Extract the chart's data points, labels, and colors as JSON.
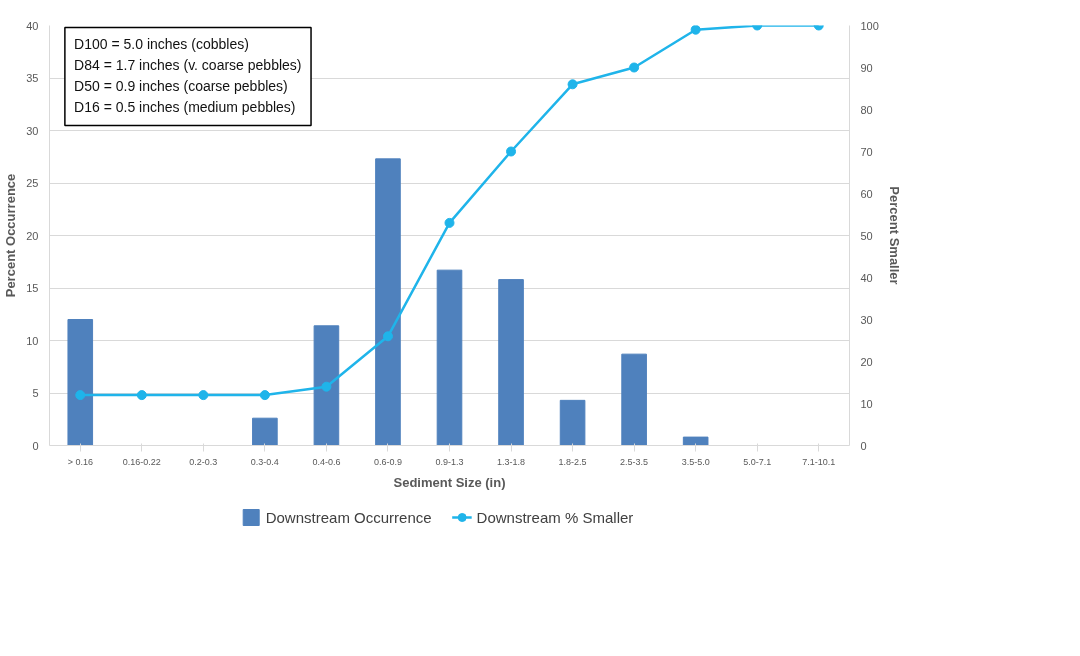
{
  "chart_data": {
    "type": "bar",
    "xlabel": "Sediment Size (in)",
    "ylabel": "Percent Occurrence",
    "y2label": "Percent Smaller",
    "categories": [
      "> 0.16",
      "0.16-0.22",
      "0.2-0.3",
      "0.3-0.4",
      "0.4-0.6",
      "0.6-0.9",
      "0.9-1.3",
      "1.3-1.8",
      "1.8-2.5",
      "2.5-3.5",
      "3.5-5.0",
      "5.0-7.1",
      "7.1-10.1"
    ],
    "series": [
      {
        "name": "Downstream Occurrence",
        "color": "#4f81bd",
        "values": [
          12,
          0,
          0,
          2.6,
          11.4,
          27.3,
          16.7,
          15.8,
          4.3,
          8.7,
          0.8,
          0,
          0
        ]
      },
      {
        "name": "Downstream % Smaller",
        "type": "line",
        "axis": "y2",
        "color": "#1fb4ea",
        "marker": "circle",
        "values": [
          12,
          12,
          12,
          12,
          14,
          26,
          53,
          70,
          86,
          90,
          99,
          100,
          100
        ]
      }
    ],
    "ylim": [
      0,
      40
    ],
    "yticks": [
      0,
      5,
      10,
      15,
      20,
      25,
      30,
      35,
      40
    ],
    "y2lim": [
      0,
      100
    ],
    "y2ticks": [
      0,
      10,
      20,
      30,
      40,
      50,
      60,
      70,
      80,
      90,
      100
    ],
    "grid": "y",
    "legend": "bottom",
    "annotations": [
      "D100 = 5.0 inches (cobbles)",
      "D84 = 1.7 inches (v. coarse pebbles)",
      "D50 = 0.9 inches (coarse pebbles)",
      "D16 = 0.5 inches (medium pebbles)"
    ]
  }
}
